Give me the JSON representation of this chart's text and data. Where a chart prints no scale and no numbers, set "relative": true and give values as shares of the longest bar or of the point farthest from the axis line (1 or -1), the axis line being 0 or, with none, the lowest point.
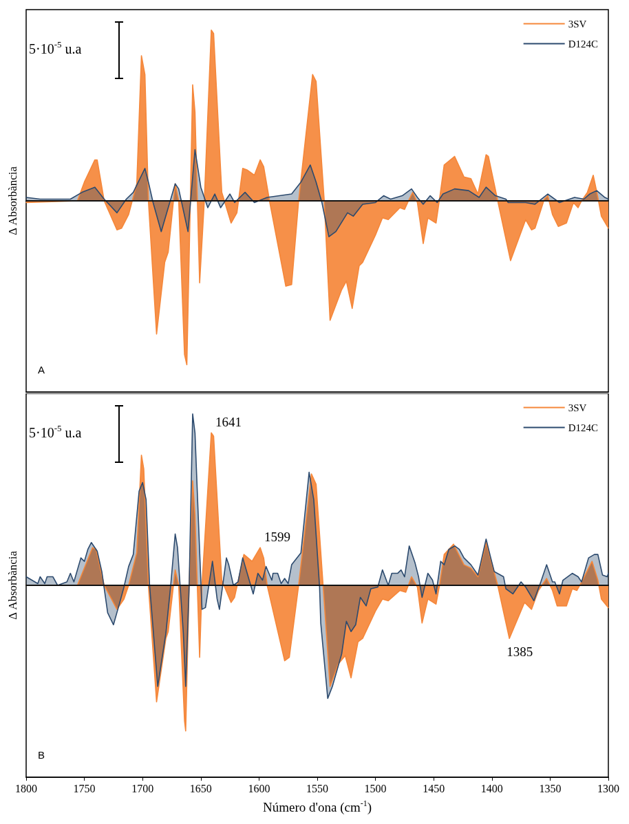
{
  "chart_data": [
    {
      "type": "area",
      "title": "A",
      "ylabel": "Δ Absorbància",
      "annotations": [
        "5·10$^{-5}$ u.a"
      ],
      "relative": true,
      "xlim": [
        1800,
        1300
      ],
      "xticks": [
        1800,
        1750,
        1700,
        1650,
        1600,
        1550,
        1500,
        1450,
        1400,
        1350,
        1300
      ],
      "tick_labels": false,
      "legend": "top right",
      "series": [
        {
          "name": "3SV",
          "color": "#f5873a",
          "x": [
            1800,
            1756,
            1750,
            1741,
            1739,
            1733,
            1722,
            1718,
            1712,
            1705,
            1701,
            1698,
            1695,
            1688,
            1681,
            1678,
            1672,
            1669,
            1664,
            1662,
            1659,
            1657,
            1655,
            1651,
            1647,
            1641,
            1639,
            1632,
            1624,
            1619,
            1614,
            1610,
            1604,
            1599,
            1596,
            1591,
            1577,
            1572,
            1566,
            1554,
            1551,
            1544,
            1539,
            1529,
            1525,
            1520,
            1514,
            1511,
            1500,
            1494,
            1489,
            1479,
            1475,
            1471,
            1468,
            1464,
            1459,
            1455,
            1448,
            1445,
            1441,
            1432,
            1424,
            1418,
            1412,
            1405,
            1403,
            1395,
            1384,
            1371,
            1366,
            1363,
            1355,
            1352,
            1348,
            1343,
            1336,
            1330,
            1326,
            1323,
            1318,
            1313,
            1309,
            1306,
            1300
          ],
          "values": [
            -0.01,
            0,
            0.11,
            0.24,
            0.24,
            0,
            -0.17,
            -0.16,
            -0.08,
            0.1,
            0.85,
            0.74,
            0,
            -0.78,
            -0.36,
            -0.3,
            0.1,
            0,
            -0.9,
            -0.96,
            0,
            0.68,
            0.52,
            -0.48,
            0,
            1.0,
            0.98,
            0.05,
            -0.13,
            -0.07,
            0.19,
            0.18,
            0.15,
            0.24,
            0.2,
            0,
            -0.5,
            -0.49,
            0,
            0.74,
            0.7,
            0,
            -0.7,
            -0.52,
            -0.47,
            -0.63,
            -0.38,
            -0.36,
            -0.2,
            -0.1,
            -0.11,
            -0.04,
            -0.05,
            0.01,
            0.05,
            -0.01,
            -0.25,
            -0.1,
            -0.13,
            0.01,
            0.21,
            0.26,
            0.14,
            0.13,
            0.04,
            0.27,
            0.26,
            0,
            -0.35,
            -0.11,
            -0.17,
            -0.16,
            0.01,
            0.03,
            -0.08,
            -0.15,
            -0.13,
            -0.01,
            -0.04,
            0,
            0.05,
            0.15,
            0.02,
            -0.09,
            -0.16
          ]
        },
        {
          "name": "D124C",
          "color": "#2c4a6e",
          "x": [
            1800,
            1788,
            1762,
            1752,
            1741,
            1733,
            1722,
            1714,
            1708,
            1698,
            1695,
            1691,
            1684,
            1678,
            1672,
            1669,
            1661,
            1655,
            1650,
            1644,
            1638,
            1633,
            1625,
            1621,
            1612,
            1604,
            1593,
            1572,
            1564,
            1556,
            1551,
            1546,
            1540,
            1534,
            1524,
            1519,
            1511,
            1500,
            1493,
            1487,
            1477,
            1469,
            1464,
            1459,
            1453,
            1447,
            1442,
            1432,
            1420,
            1411,
            1405,
            1397,
            1388,
            1386,
            1371,
            1363,
            1352,
            1342,
            1329,
            1321,
            1316,
            1310,
            1303,
            1300
          ],
          "values": [
            0.02,
            0.01,
            0.01,
            0.05,
            0.08,
            0.01,
            -0.07,
            0.01,
            0.05,
            0.19,
            0.11,
            -0.01,
            -0.18,
            -0.04,
            0.1,
            0.07,
            -0.18,
            0.3,
            0.08,
            -0.04,
            0.04,
            -0.04,
            0.04,
            -0.01,
            0.05,
            -0.01,
            0.02,
            0.04,
            0.11,
            0.21,
            0.11,
            -0.01,
            -0.21,
            -0.18,
            -0.07,
            -0.09,
            -0.02,
            -0.01,
            0.03,
            0.01,
            0.03,
            0.07,
            0.02,
            -0.02,
            0.03,
            -0.01,
            0.04,
            0.07,
            0.06,
            0.02,
            0.08,
            0.03,
            0.01,
            -0.01,
            -0.01,
            -0.02,
            0.04,
            -0.01,
            0.02,
            0.01,
            0.04,
            0.06,
            0.02,
            0.01
          ]
        }
      ]
    },
    {
      "type": "area",
      "title": "B",
      "ylabel": "Δ Absorbància",
      "xlabel": "Número d'ona (cm$^{-1}$)",
      "annotations": [
        "5·10$^{-5}$ u.a",
        {
          "text": "1641",
          "x": 1641,
          "y": 0.89
        },
        {
          "text": "1599",
          "x": 1599,
          "y": 0.22
        },
        {
          "text": "1385",
          "x": 1385,
          "y": -0.31
        }
      ],
      "relative": true,
      "xlim": [
        1800,
        1300
      ],
      "xticks": [
        1800,
        1750,
        1700,
        1650,
        1600,
        1550,
        1500,
        1450,
        1400,
        1350,
        1300
      ],
      "tick_labels": "x",
      "legend": "top right",
      "series": [
        {
          "name": "3SV",
          "color": "#f5873a",
          "x": [
            1800,
            1756,
            1743,
            1740,
            1733,
            1722,
            1716,
            1712,
            1705,
            1701,
            1699,
            1695,
            1688,
            1680,
            1678,
            1672,
            1669,
            1664,
            1663,
            1660,
            1657,
            1655,
            1651,
            1649,
            1641,
            1639,
            1632,
            1624,
            1621,
            1613,
            1606,
            1599,
            1596,
            1593,
            1578,
            1574,
            1566,
            1555,
            1551,
            1545,
            1539,
            1532,
            1526,
            1521,
            1515,
            1511,
            1500,
            1494,
            1489,
            1479,
            1474,
            1469,
            1464,
            1460,
            1455,
            1448,
            1445,
            1441,
            1433,
            1424,
            1418,
            1412,
            1405,
            1395,
            1385,
            1372,
            1366,
            1360,
            1353,
            1348,
            1344,
            1336,
            1331,
            1327,
            1323,
            1314,
            1309,
            1306,
            1300
          ],
          "values": [
            0,
            0,
            0.22,
            0.21,
            0,
            -0.14,
            -0.08,
            0,
            0.19,
            0.76,
            0.68,
            0,
            -0.68,
            -0.31,
            -0.27,
            0.09,
            0,
            -0.79,
            -0.85,
            0,
            0.61,
            0.41,
            -0.42,
            0,
            0.89,
            0.87,
            0.03,
            -0.1,
            -0.07,
            0.18,
            0.14,
            0.22,
            0.16,
            0,
            -0.44,
            -0.42,
            0,
            0.65,
            0.59,
            0,
            -0.59,
            -0.46,
            -0.41,
            -0.54,
            -0.33,
            -0.31,
            -0.15,
            -0.08,
            -0.09,
            -0.03,
            -0.04,
            0.05,
            -0.01,
            -0.22,
            -0.08,
            -0.11,
            0,
            0.18,
            0.24,
            0.12,
            0.1,
            0.05,
            0.25,
            0,
            -0.31,
            -0.1,
            -0.14,
            -0.03,
            0.04,
            -0.03,
            -0.12,
            -0.12,
            -0.02,
            -0.03,
            0.02,
            0.14,
            0.03,
            -0.08,
            -0.13
          ]
        },
        {
          "name": "D124C",
          "color": "#2c4a6e",
          "x": [
            1800,
            1790,
            1788,
            1784,
            1782,
            1777,
            1773,
            1765,
            1762,
            1759,
            1753,
            1750,
            1747,
            1744,
            1739,
            1735,
            1730,
            1725,
            1720,
            1716,
            1712,
            1708,
            1703,
            1700,
            1697,
            1694,
            1687,
            1680,
            1676,
            1672,
            1670,
            1665,
            1663,
            1660,
            1657,
            1655,
            1652,
            1649,
            1646,
            1640,
            1636,
            1634,
            1628,
            1626,
            1622,
            1618,
            1614,
            1608,
            1605,
            1601,
            1597,
            1594,
            1589,
            1588,
            1584,
            1581,
            1578,
            1575,
            1572,
            1564,
            1557,
            1553,
            1548,
            1547,
            1541,
            1537,
            1529,
            1525,
            1521,
            1517,
            1513,
            1508,
            1504,
            1498,
            1494,
            1489,
            1486,
            1481,
            1478,
            1475,
            1471,
            1466,
            1463,
            1460,
            1455,
            1451,
            1448,
            1444,
            1441,
            1437,
            1432,
            1428,
            1424,
            1418,
            1412,
            1405,
            1401,
            1398,
            1390,
            1388,
            1382,
            1375,
            1371,
            1364,
            1358,
            1353,
            1348,
            1346,
            1342,
            1339,
            1331,
            1326,
            1323,
            1317,
            1312,
            1309,
            1305,
            1301,
            1300
          ],
          "values": [
            0.05,
            0.01,
            0.05,
            0.01,
            0.05,
            0.05,
            0,
            0.02,
            0.07,
            0.02,
            0.16,
            0.14,
            0.21,
            0.25,
            0.2,
            0.08,
            -0.16,
            -0.23,
            -0.11,
            -0.01,
            0.11,
            0.18,
            0.55,
            0.6,
            0.5,
            0,
            -0.59,
            -0.28,
            -0.01,
            0.3,
            0.22,
            -0.28,
            -0.59,
            0,
            1.0,
            0.89,
            0.37,
            -0.14,
            -0.13,
            0.14,
            -0.08,
            -0.14,
            0.16,
            0.12,
            0,
            0.02,
            0.16,
            0.02,
            -0.05,
            0.07,
            0.03,
            0.11,
            0.03,
            0.07,
            0.07,
            0.01,
            0.04,
            0.01,
            0.12,
            0.19,
            0.66,
            0.5,
            -0.01,
            -0.22,
            -0.66,
            -0.59,
            -0.4,
            -0.21,
            -0.27,
            -0.23,
            -0.07,
            -0.12,
            -0.02,
            -0.01,
            0.09,
            0,
            0.07,
            0.07,
            0.09,
            0.05,
            0.23,
            0.13,
            0.05,
            -0.07,
            0.07,
            0.03,
            -0.05,
            0.14,
            0.12,
            0.21,
            0.23,
            0.21,
            0.16,
            0.12,
            0.06,
            0.27,
            0.16,
            0.08,
            0.05,
            -0.02,
            -0.05,
            0.02,
            -0.01,
            -0.09,
            0.02,
            0.12,
            0.02,
            0.02,
            -0.05,
            0.03,
            0.07,
            0.05,
            0.02,
            0.16,
            0.18,
            0.18,
            0.06,
            0.05,
            0.07
          ]
        }
      ]
    }
  ]
}
